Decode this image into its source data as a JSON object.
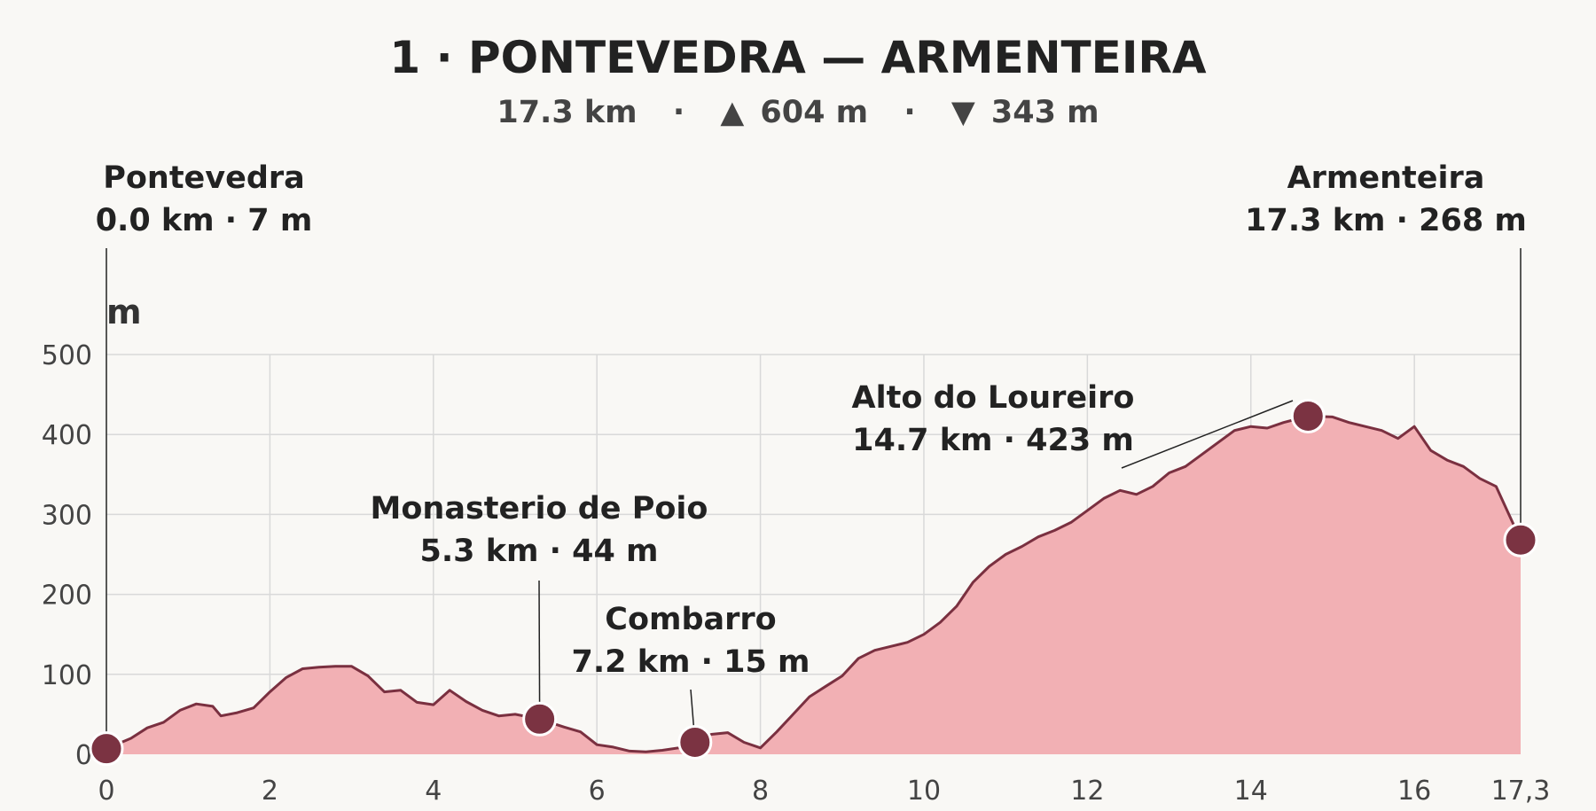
{
  "chart_data": {
    "type": "area",
    "title": "1 · PONTEVEDRA — ARMENTEIRA",
    "subtitle": {
      "distance": "17.3 km",
      "ascent_symbol": "▲",
      "ascent": "604 m",
      "descent_symbol": "▼",
      "descent": "343 m",
      "separator": "·"
    },
    "ylabel": "m",
    "xlabel": "",
    "xlim": [
      0,
      17.3
    ],
    "ylim": [
      0,
      500
    ],
    "grid": true,
    "x_ticks": [
      {
        "value": 0,
        "label": "0"
      },
      {
        "value": 2,
        "label": "2"
      },
      {
        "value": 4,
        "label": "4"
      },
      {
        "value": 6,
        "label": "6"
      },
      {
        "value": 8,
        "label": "8"
      },
      {
        "value": 10,
        "label": "10"
      },
      {
        "value": 12,
        "label": "12"
      },
      {
        "value": 14,
        "label": "14"
      },
      {
        "value": 16,
        "label": "16"
      },
      {
        "value": 17.3,
        "label": "17,3"
      }
    ],
    "y_ticks": [
      {
        "value": 0,
        "label": "0"
      },
      {
        "value": 100,
        "label": "100"
      },
      {
        "value": 200,
        "label": "200"
      },
      {
        "value": 300,
        "label": "300"
      },
      {
        "value": 400,
        "label": "400"
      },
      {
        "value": 500,
        "label": "500"
      }
    ],
    "colors": {
      "fill": "#f2b0b4",
      "line": "#7a3040",
      "marker": "#7b3342",
      "grid": "#d9d9d9"
    },
    "profile": {
      "x": [
        0,
        0.3,
        0.5,
        0.7,
        0.9,
        1.1,
        1.3,
        1.4,
        1.6,
        1.8,
        2.0,
        2.2,
        2.4,
        2.6,
        2.8,
        3.0,
        3.2,
        3.4,
        3.6,
        3.8,
        4.0,
        4.2,
        4.4,
        4.6,
        4.8,
        5.0,
        5.3,
        5.6,
        5.8,
        6.0,
        6.2,
        6.4,
        6.6,
        6.8,
        7.0,
        7.2,
        7.4,
        7.6,
        7.8,
        8.0,
        8.2,
        8.4,
        8.6,
        8.8,
        9.0,
        9.2,
        9.4,
        9.6,
        9.8,
        10.0,
        10.2,
        10.4,
        10.6,
        10.8,
        11.0,
        11.2,
        11.4,
        11.6,
        11.8,
        12.0,
        12.2,
        12.4,
        12.6,
        12.8,
        13.0,
        13.2,
        13.4,
        13.6,
        13.8,
        14.0,
        14.2,
        14.4,
        14.7,
        15.0,
        15.2,
        15.4,
        15.6,
        15.8,
        16.0,
        16.2,
        16.4,
        16.6,
        16.8,
        17.0,
        17.3
      ],
      "y": [
        7,
        20,
        33,
        40,
        55,
        63,
        60,
        48,
        52,
        58,
        78,
        96,
        107,
        109,
        110,
        110,
        98,
        78,
        80,
        65,
        62,
        80,
        66,
        55,
        48,
        50,
        44,
        34,
        28,
        12,
        9,
        4,
        3,
        5,
        8,
        15,
        25,
        27,
        15,
        8,
        28,
        50,
        72,
        85,
        98,
        120,
        130,
        135,
        140,
        150,
        165,
        185,
        215,
        235,
        250,
        260,
        272,
        280,
        290,
        305,
        320,
        330,
        325,
        335,
        352,
        360,
        375,
        390,
        405,
        410,
        408,
        415,
        423,
        422,
        415,
        410,
        405,
        395,
        410,
        380,
        368,
        360,
        345,
        335,
        268
      ]
    },
    "waypoints": [
      {
        "name": "Pontevedra",
        "meta": "0.0 km · 7 m",
        "x": 0.0,
        "y": 7
      },
      {
        "name": "Monasterio de Poio",
        "meta": "5.3 km · 44 m",
        "x": 5.3,
        "y": 44
      },
      {
        "name": "Combarro",
        "meta": "7.2 km · 15 m",
        "x": 7.2,
        "y": 15
      },
      {
        "name": "Alto do Loureiro",
        "meta": "14.7 km · 423 m",
        "x": 14.7,
        "y": 423
      },
      {
        "name": "Armenteira",
        "meta": "17.3 km · 268 m",
        "x": 17.3,
        "y": 268
      }
    ]
  }
}
